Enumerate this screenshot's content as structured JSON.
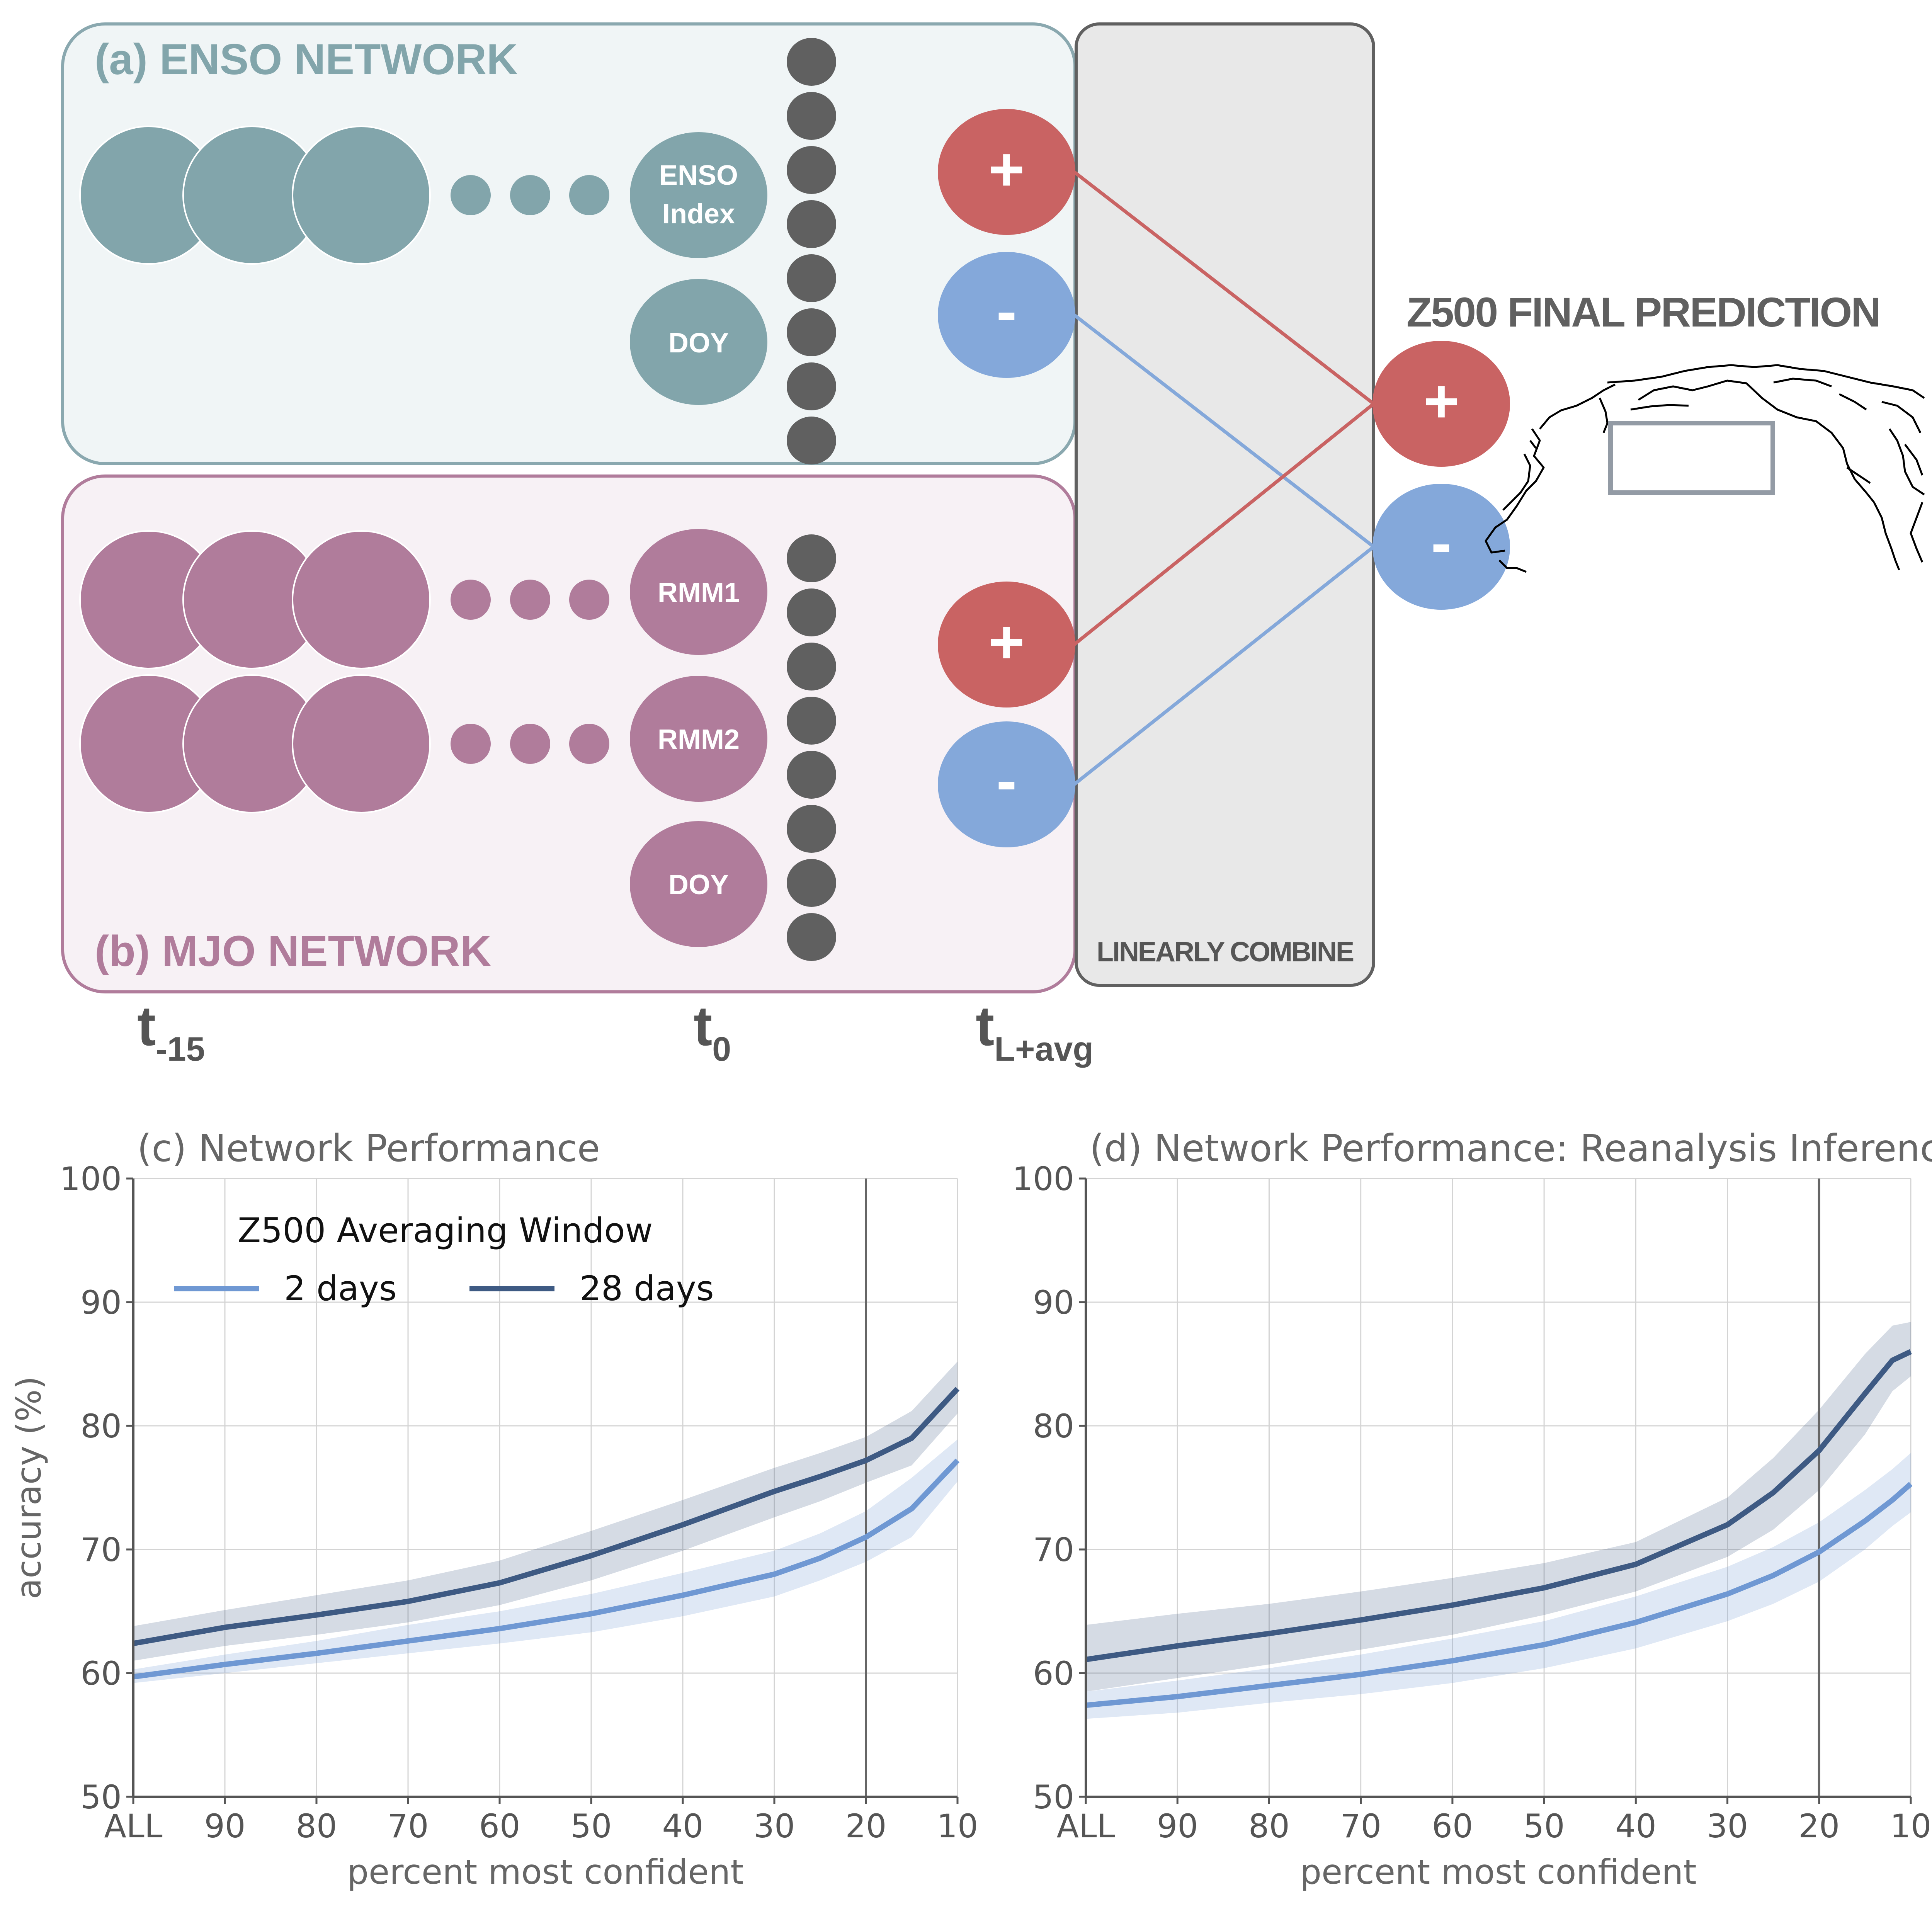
{
  "diagram": {
    "enso": {
      "title": "(a) ENSO NETWORK",
      "index_label_line1": "ENSO",
      "index_label_line2": "Index",
      "doy_label": "DOY",
      "plus_label": "+",
      "minus_label": "-"
    },
    "mjo": {
      "title": "(b) MJO NETWORK",
      "rmm1_label": "RMM1",
      "rmm2_label": "RMM2",
      "doy_label": "DOY",
      "plus_label": "+",
      "minus_label": "-"
    },
    "combine_label": "LINEARLY COMBINE",
    "final_title": "Z500 FINAL PREDICTION",
    "final_plus_label": "+",
    "final_minus_label": "-",
    "time_labels": [
      {
        "base": "t",
        "sub": "-15"
      },
      {
        "base": "t",
        "sub": "0"
      },
      {
        "base": "t",
        "sub": "L+avg"
      }
    ],
    "colors": {
      "enso_node": "#82a5ab",
      "enso_fill": "#f0f5f6",
      "enso_border": "#8aa8af",
      "mjo_node": "#b07c9b",
      "mjo_fill": "#f7f1f5",
      "mjo_border": "#b07c9b",
      "hidden_node": "#606060",
      "plus": "#c96363",
      "minus": "#84a8da",
      "combine_fill": "#e8e8e8",
      "map_box": "#939ba5"
    },
    "hidden_nodes_per_network": 8
  },
  "chart_data": [
    {
      "type": "line",
      "title": "(c) Network Performance",
      "xlabel": "percent most confident",
      "ylabel": "accuracy (%)",
      "ylim": [
        50,
        100
      ],
      "yticks": [
        50,
        60,
        70,
        80,
        90,
        100
      ],
      "xticks": [
        "ALL",
        "90",
        "80",
        "70",
        "60",
        "50",
        "40",
        "30",
        "20",
        "10"
      ],
      "x_range": [
        100,
        10
      ],
      "vline_x": 20,
      "grid": true,
      "legend": {
        "title": "Z500 Averaging Window",
        "placement": "top-left"
      },
      "x": [
        100,
        90,
        80,
        70,
        60,
        50,
        40,
        30,
        25,
        20,
        15,
        10
      ],
      "series": [
        {
          "name": "2 days",
          "color": "#6f98d3",
          "values": [
            59.7,
            60.7,
            61.6,
            62.6,
            63.6,
            64.8,
            66.3,
            68.0,
            69.3,
            71.0,
            73.3,
            77.2
          ],
          "lower": [
            59.2,
            60.0,
            60.8,
            61.6,
            62.4,
            63.3,
            64.6,
            66.2,
            67.5,
            69.0,
            71.0,
            75.5
          ],
          "upper": [
            60.3,
            61.5,
            62.6,
            63.9,
            65.0,
            66.4,
            68.1,
            69.9,
            71.3,
            73.1,
            75.8,
            78.9
          ]
        },
        {
          "name": "28 days",
          "color": "#3e5a83",
          "values": [
            62.4,
            63.7,
            64.7,
            65.8,
            67.3,
            69.5,
            72.0,
            74.7,
            75.9,
            77.2,
            79.0,
            83.0
          ],
          "lower": [
            61.0,
            62.2,
            63.1,
            64.1,
            65.5,
            67.5,
            69.9,
            72.6,
            73.9,
            75.4,
            76.8,
            81.0
          ],
          "upper": [
            63.8,
            65.1,
            66.3,
            67.5,
            69.1,
            71.5,
            74.0,
            76.6,
            77.8,
            79.1,
            81.2,
            85.2
          ]
        }
      ]
    },
    {
      "type": "line",
      "title": "(d) Network Performance: Reanalysis Inference",
      "xlabel": "percent most confident",
      "ylabel": "",
      "ylim": [
        50,
        100
      ],
      "yticks": [
        50,
        60,
        70,
        80,
        90,
        100
      ],
      "xticks": [
        "ALL",
        "90",
        "80",
        "70",
        "60",
        "50",
        "40",
        "30",
        "20",
        "10"
      ],
      "x_range": [
        100,
        10
      ],
      "vline_x": 20,
      "grid": true,
      "x": [
        100,
        90,
        80,
        70,
        60,
        50,
        40,
        30,
        25,
        20,
        15,
        12,
        10
      ],
      "series": [
        {
          "name": "2 days",
          "color": "#6f98d3",
          "values": [
            57.4,
            58.1,
            59.0,
            59.9,
            61.0,
            62.3,
            64.1,
            66.4,
            67.9,
            69.8,
            72.3,
            74.0,
            75.3
          ],
          "lower": [
            56.3,
            56.8,
            57.6,
            58.3,
            59.2,
            60.4,
            62.0,
            64.2,
            65.6,
            67.4,
            70.0,
            71.9,
            73.0
          ],
          "upper": [
            58.5,
            59.4,
            60.4,
            61.5,
            62.8,
            64.2,
            66.2,
            68.6,
            70.2,
            72.2,
            74.8,
            76.5,
            77.8
          ]
        },
        {
          "name": "28 days",
          "color": "#3e5a83",
          "values": [
            61.1,
            62.2,
            63.2,
            64.3,
            65.5,
            66.9,
            68.8,
            72.0,
            74.6,
            78.0,
            82.6,
            85.3,
            86.0
          ],
          "lower": [
            58.5,
            59.6,
            60.7,
            61.9,
            63.1,
            64.7,
            66.6,
            69.4,
            71.6,
            74.8,
            79.3,
            82.8,
            84.0
          ],
          "upper": [
            63.9,
            64.8,
            65.6,
            66.6,
            67.7,
            68.9,
            70.6,
            74.2,
            77.4,
            81.3,
            85.8,
            88.1,
            88.4
          ]
        }
      ]
    }
  ]
}
